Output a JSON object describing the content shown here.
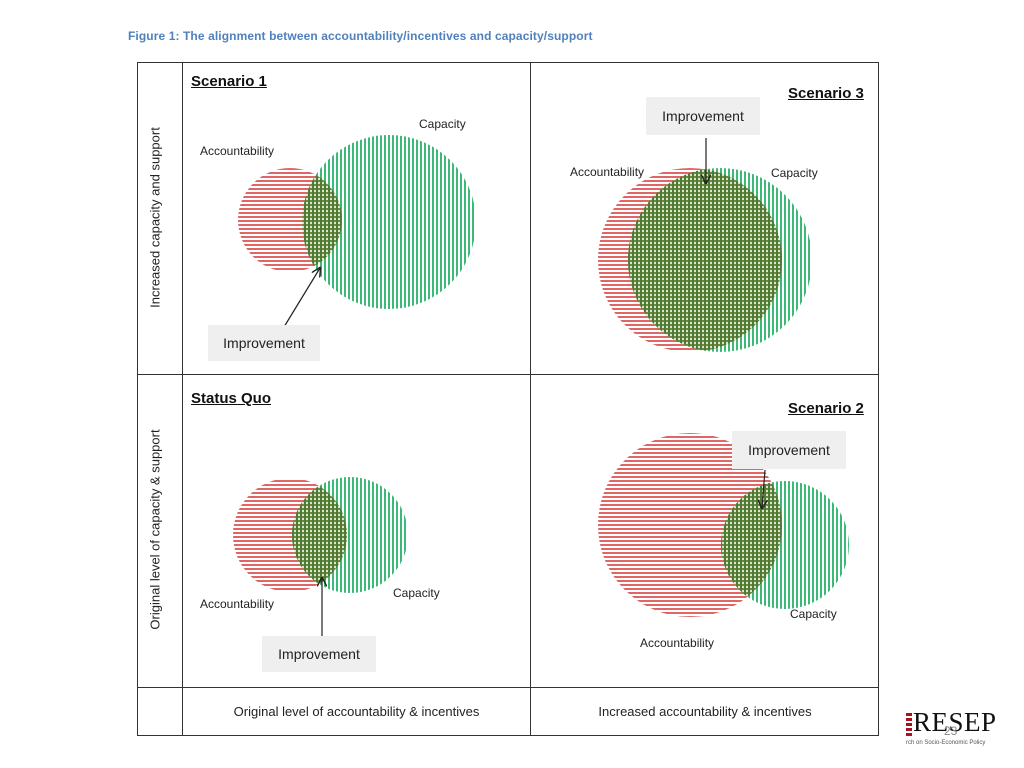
{
  "figure_title": "Figure 1: The alignment between accountability/incentives  and capacity/support",
  "row_labels": {
    "top": "Increased capacity and support",
    "bottom": "Original level of capacity & support"
  },
  "col_labels": {
    "left": "Original level of accountability & incentives",
    "right": "Increased accountability & incentives"
  },
  "panels": {
    "scenario1": {
      "title": "Scenario 1",
      "accountability": "Accountability",
      "capacity": "Capacity",
      "improvement": "Improvement"
    },
    "scenario3": {
      "title": "Scenario 3",
      "accountability": "Accountability",
      "capacity": "Capacity",
      "improvement": "Improvement"
    },
    "status_quo": {
      "title": "Status Quo",
      "accountability": "Accountability",
      "capacity": "Capacity",
      "improvement": "Improvement"
    },
    "scenario2": {
      "title": "Scenario 2",
      "accountability": "Accountability",
      "capacity": "Capacity",
      "improvement": "Improvement"
    }
  },
  "colors": {
    "accountability": "#e06666",
    "capacity": "#3cb878",
    "overlap": "#5a7a3a",
    "title": "#4f81bd",
    "logo_red": "#a6121d"
  },
  "logo": {
    "name": "RESEP",
    "tagline": "rch on Socio-Economic Policy"
  },
  "page_number": "23"
}
